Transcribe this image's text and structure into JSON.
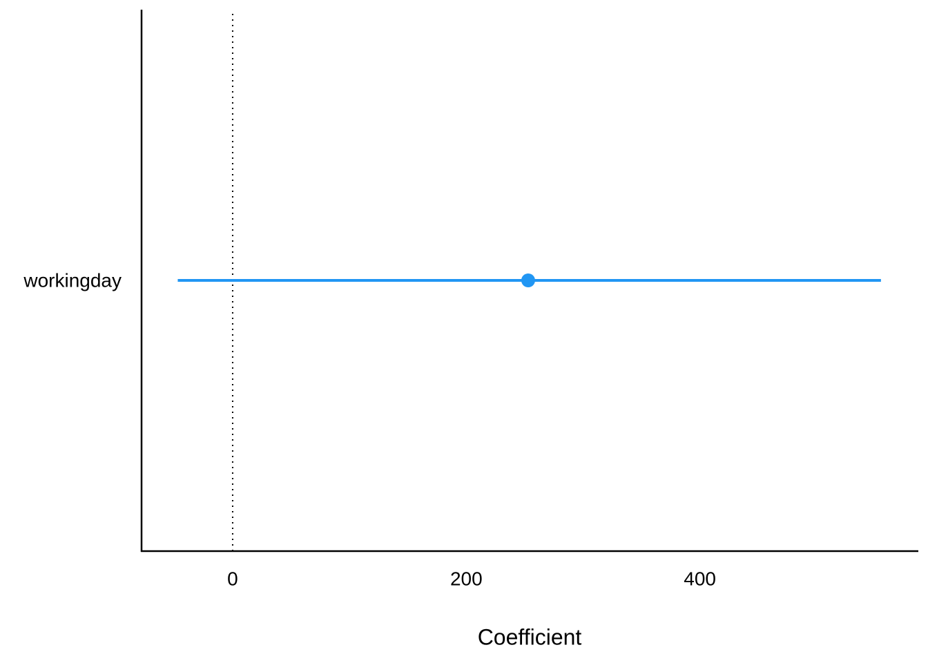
{
  "chart_data": {
    "type": "coefplot",
    "x_label": "Coefficient",
    "categories": [
      "workingday"
    ],
    "series": [
      {
        "color": "#2196f3",
        "values": [
          253
        ],
        "ci_low": [
          -47
        ],
        "ci_high": [
          555
        ]
      }
    ],
    "xlim": [
      -78,
      587
    ],
    "xticks": [
      0,
      200,
      400
    ],
    "reference_line": 0,
    "grid": false
  }
}
